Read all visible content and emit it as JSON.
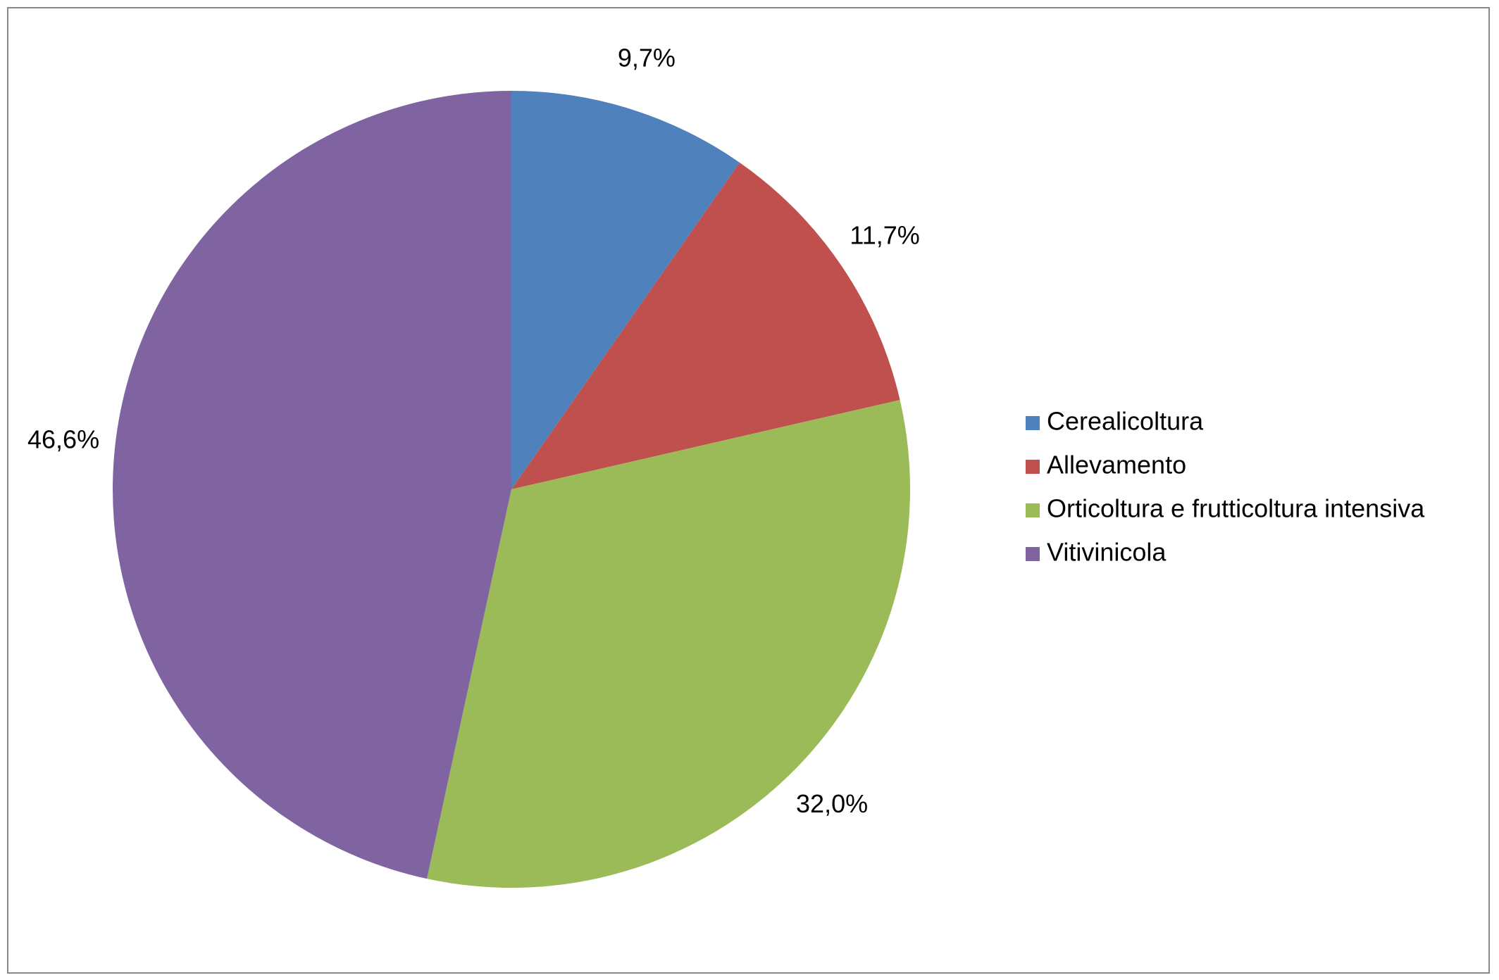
{
  "chart_data": {
    "type": "pie",
    "categories": [
      "Cerealicoltura",
      "Allevamento",
      "Orticoltura e frutticoltura intensiva",
      "Vitivinicola"
    ],
    "values": [
      9.7,
      11.7,
      32.0,
      46.6
    ],
    "value_labels": [
      "9,7%",
      "11,7%",
      "32,0%",
      "46,6%"
    ],
    "colors": [
      "#4f81bd",
      "#c0504d",
      "#9bbb59",
      "#8064a2"
    ],
    "legend": "right"
  }
}
